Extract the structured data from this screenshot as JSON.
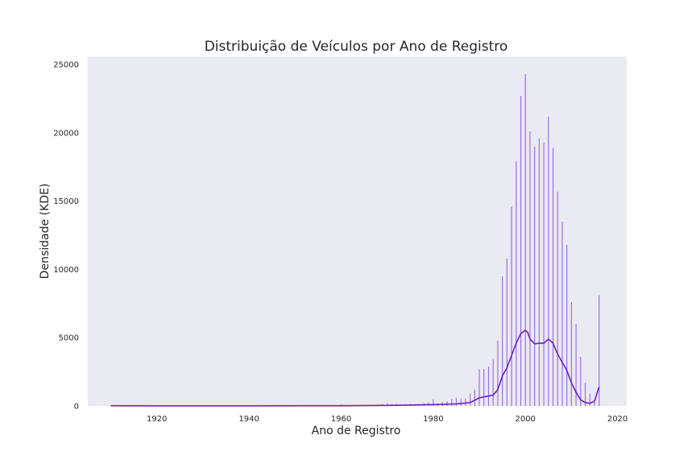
{
  "chart_data": {
    "type": "bar",
    "title": "Distribuição de Veículos por Ano de Registro",
    "xlabel": "Ano de Registro",
    "ylabel": "Densidade (KDE)",
    "xlim": [
      1905,
      2022
    ],
    "ylim": [
      0,
      25600
    ],
    "x_ticks": [
      1920,
      1940,
      1960,
      1980,
      2000,
      2020
    ],
    "y_ticks": [
      0,
      5000,
      10000,
      15000,
      20000,
      25000
    ],
    "grid": false,
    "legend": "none",
    "colors": {
      "bars": "#8e5ae0",
      "kde": "#6a1fc8",
      "background": "#eaeaf2"
    },
    "series": [
      {
        "kind": "histogram",
        "x": [
          1910,
          1920,
          1930,
          1940,
          1950,
          1960,
          1965,
          1967,
          1968,
          1969,
          1970,
          1971,
          1972,
          1973,
          1974,
          1975,
          1976,
          1977,
          1978,
          1979,
          1980,
          1981,
          1982,
          1983,
          1984,
          1985,
          1986,
          1987,
          1988,
          1989,
          1990,
          1991,
          1992,
          1993,
          1994,
          1995,
          1996,
          1997,
          1998,
          1999,
          2000,
          2001,
          2002,
          2003,
          2004,
          2005,
          2006,
          2007,
          2008,
          2009,
          2010,
          2011,
          2012,
          2013,
          2014,
          2015,
          2016
        ],
        "values": [
          50,
          10,
          10,
          10,
          10,
          150,
          50,
          80,
          100,
          150,
          200,
          130,
          150,
          100,
          100,
          150,
          120,
          120,
          200,
          250,
          500,
          200,
          300,
          350,
          500,
          600,
          550,
          550,
          900,
          1200,
          2700,
          2700,
          2900,
          3400,
          4800,
          9500,
          10800,
          14600,
          17900,
          22700,
          24300,
          20100,
          19000,
          19600,
          19300,
          21200,
          18900,
          15700,
          13500,
          11800,
          7600,
          6000,
          3600,
          1700,
          900,
          300,
          8100
        ]
      },
      {
        "kind": "kde",
        "x": [
          1910,
          1920,
          1940,
          1960,
          1970,
          1980,
          1985,
          1988,
          1990,
          1993,
          1994,
          1995,
          1996,
          1997,
          1998,
          1999,
          2000,
          2000.5,
          2001,
          2002,
          2003,
          2004,
          2005,
          2006,
          2007,
          2008,
          2009,
          2010,
          2011,
          2012,
          2013,
          2014,
          2015,
          2016
        ],
        "values": [
          20,
          10,
          10,
          20,
          40,
          100,
          150,
          250,
          600,
          800,
          1200,
          2200,
          2800,
          3700,
          4600,
          5300,
          5550,
          5400,
          4900,
          4550,
          4600,
          4600,
          4900,
          4600,
          3800,
          3200,
          2600,
          1700,
          1000,
          450,
          250,
          200,
          350,
          1400
        ]
      }
    ]
  }
}
